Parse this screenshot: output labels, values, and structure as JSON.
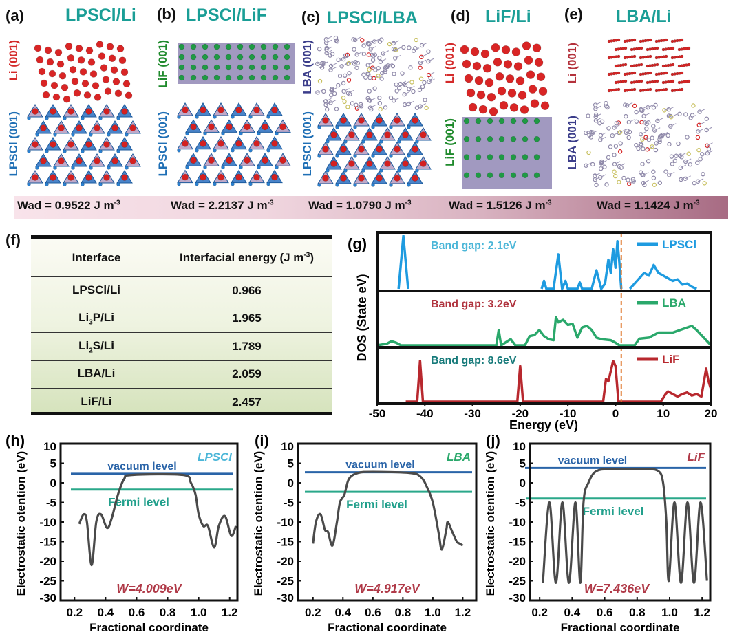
{
  "structures": {
    "panels": [
      {
        "label": "(a)",
        "title": "LPSCl/Li",
        "top_layer": "Li (001)",
        "bottom_layer": "LPSCl (001)",
        "top_color": "#d42a2a",
        "bottom_color": "#1f6fb5"
      },
      {
        "label": "(b)",
        "title": "LPSCl/LiF",
        "top_layer": "LiF (001)",
        "bottom_layer": "LPSCl (001)",
        "top_color": "#1f8a2c",
        "bottom_color": "#1f6fb5"
      },
      {
        "label": "(c)",
        "title": "LPSCl/LBA",
        "top_layer": "LBA (001)",
        "bottom_layer": "LPSCl (001)",
        "top_color": "#3b3d8a",
        "bottom_color": "#1f6fb5"
      },
      {
        "label": "(d)",
        "title": "LiF/Li",
        "top_layer": "Li (001)",
        "bottom_layer": "LiF (001)",
        "top_color": "#d42a2a",
        "bottom_color": "#1f8a2c"
      },
      {
        "label": "(e)",
        "title": "LBA/Li",
        "top_layer": "Li (001)",
        "bottom_layer": "LBA (001)",
        "top_color": "#b4323c",
        "bottom_color": "#3b3d8a"
      }
    ],
    "wad": [
      {
        "text": "Wad = 0.9522 J m",
        "sup": "-3"
      },
      {
        "text": "Wad = 2.2137 J m",
        "sup": "-3"
      },
      {
        "text": "Wad = 1.0790 J m",
        "sup": "-3"
      },
      {
        "text": "Wad = 1.5126 J m",
        "sup": "-3"
      },
      {
        "text": "Wad = 1.1424 J m",
        "sup": "-3"
      }
    ]
  },
  "table": {
    "label": "(f)",
    "headers": {
      "interface": "Interface",
      "energy": "Interfacial energy (J m",
      "energy_sup": "-3",
      "energy_close": ")"
    },
    "rows": [
      {
        "pre": "LPSCl/Li",
        "sub": "",
        "post": "",
        "value": "0.966"
      },
      {
        "pre": "Li",
        "sub": "3",
        "post": "P/Li",
        "value": "1.965"
      },
      {
        "pre": "Li",
        "sub": "2",
        "post": "S/Li",
        "value": "1.789"
      },
      {
        "pre": "LBA/Li",
        "sub": "",
        "post": "",
        "value": "2.059"
      },
      {
        "pre": "LiF/Li",
        "sub": "",
        "post": "",
        "value": "2.457"
      }
    ]
  },
  "chart_data": [
    {
      "id": "g",
      "label": "(g)",
      "type": "line",
      "xlabel": "Energy (eV)",
      "ylabel": "DOS (State eV)",
      "xlim": [
        -50,
        20
      ],
      "xticks": [
        "-50",
        "-40",
        "-30",
        "-20",
        "-10",
        "0",
        "10",
        "20"
      ],
      "fermi_line_x": 1.2,
      "fermi_line_color": "#e07a30",
      "series": [
        {
          "name": "LPSCl",
          "color": "#1e9be0",
          "annotation": "Band gap: 2.1eV",
          "annotation_color": "#4bb6d8",
          "points": [
            [
              -45.5,
              0
            ],
            [
              -44.5,
              1
            ],
            [
              -43.5,
              0
            ],
            null,
            [
              -15.5,
              0
            ],
            [
              -15,
              0.15
            ],
            [
              -14.5,
              0
            ],
            [
              -13,
              0
            ],
            [
              -12,
              0.65
            ],
            [
              -11.2,
              0
            ],
            [
              -10.5,
              0.15
            ],
            [
              -10,
              0
            ],
            [
              -8,
              0
            ],
            [
              -7.5,
              0.12
            ],
            [
              -7,
              0
            ],
            [
              -5,
              0
            ],
            [
              -4,
              0.35
            ],
            [
              -3,
              0
            ],
            [
              -2.2,
              0.1
            ],
            [
              -1.5,
              0.55
            ],
            [
              -1,
              0.3
            ],
            [
              -0.5,
              0.75
            ],
            [
              0,
              0.4
            ],
            [
              0.4,
              0.9
            ],
            [
              0.8,
              0.5
            ],
            [
              1.2,
              0
            ],
            null,
            [
              3,
              0
            ],
            [
              4,
              0.1
            ],
            [
              5,
              0.2
            ],
            [
              6,
              0.3
            ],
            [
              7,
              0.25
            ],
            [
              8,
              0.45
            ],
            [
              9,
              0.3
            ],
            [
              10,
              0.25
            ],
            [
              11,
              0.2
            ],
            [
              12,
              0.15
            ],
            [
              13,
              0.18
            ],
            [
              14,
              0.08
            ],
            [
              15,
              0.1
            ],
            [
              16,
              0.04
            ],
            [
              17,
              0
            ]
          ]
        },
        {
          "name": "LBA",
          "color": "#2aa86b",
          "annotation": "Band gap: 3.2eV",
          "annotation_color": "#b0343f",
          "points": [
            [
              -50,
              0
            ],
            [
              -48,
              0.03
            ],
            [
              -47,
              0.08
            ],
            [
              -46,
              0.05
            ],
            [
              -45,
              0
            ],
            [
              -25,
              0
            ],
            [
              -24.5,
              0.3
            ],
            [
              -24,
              0
            ],
            [
              -22,
              0.12
            ],
            [
              -21,
              0
            ],
            [
              -19,
              0
            ],
            [
              -18,
              0.18
            ],
            [
              -17,
              0.2
            ],
            [
              -16,
              0.3
            ],
            [
              -15,
              0.18
            ],
            [
              -14,
              0.12
            ],
            [
              -13,
              0.1
            ],
            [
              -12.5,
              0.55
            ],
            [
              -12,
              0.45
            ],
            [
              -11,
              0.5
            ],
            [
              -10,
              0.4
            ],
            [
              -9,
              0.42
            ],
            [
              -8,
              0.15
            ],
            [
              -7,
              0.35
            ],
            [
              -6,
              0.38
            ],
            [
              -5,
              0.3
            ],
            [
              -4,
              0.15
            ],
            [
              -3,
              0.12
            ],
            [
              -1,
              0.1
            ],
            [
              0,
              0.05
            ],
            [
              0.8,
              0
            ],
            [
              4,
              0
            ],
            [
              5,
              0.13
            ],
            [
              7,
              0.15
            ],
            [
              9,
              0.25
            ],
            [
              12,
              0.25
            ],
            [
              16,
              0.38
            ],
            [
              17,
              0.3
            ],
            [
              19,
              0.1
            ],
            [
              20,
              0
            ]
          ]
        },
        {
          "name": "LiF",
          "color": "#b8282e",
          "annotation": "Band gap: 8.6eV",
          "annotation_color": "#167a7a",
          "points": [
            [
              -44,
              0
            ],
            [
              -41.6,
              0
            ],
            [
              -41,
              0.8
            ],
            [
              -40.4,
              0
            ],
            [
              -20.6,
              0
            ],
            [
              -20,
              0.7
            ],
            [
              -19.4,
              0
            ],
            [
              -2.6,
              0
            ],
            [
              -2,
              0.45
            ],
            [
              -1.5,
              0.4
            ],
            [
              -1,
              0.6
            ],
            [
              -0.5,
              0.8
            ],
            [
              0,
              0.7
            ],
            [
              0.6,
              0
            ],
            [
              9.5,
              0
            ],
            [
              10.5,
              0.15
            ],
            [
              11,
              0.2
            ],
            [
              12,
              0.15
            ],
            [
              13,
              0.1
            ],
            [
              14,
              0.15
            ],
            [
              15,
              0.18
            ],
            [
              16,
              0.12
            ],
            [
              17,
              0.15
            ],
            [
              18,
              0.1
            ],
            [
              19,
              0.65
            ],
            [
              19.5,
              0.4
            ],
            [
              20,
              0.25
            ]
          ]
        }
      ]
    },
    {
      "id": "h",
      "label": "(h)",
      "type": "line",
      "material": "LPSCl",
      "material_color": "#4bb6d8",
      "xlabel": "Fractional coordinate",
      "ylabel": "Electrostatic otention (eV)",
      "xlim": [
        0.11,
        1.25
      ],
      "ylim": [
        -30,
        10
      ],
      "xticks": [
        "0.2",
        "0.4",
        "0.6",
        "0.8",
        "1.0",
        "1.2"
      ],
      "yticks": [
        "10",
        "5",
        "0",
        "-5",
        "-10",
        "-15",
        "-20",
        "-25",
        "-30"
      ],
      "vacuum_label": "vacuum level",
      "vacuum_level": 2.3,
      "fermi_label": "Fermi level",
      "fermi_level": -1.7,
      "work_function": "W=4.009eV",
      "points": [
        [
          0.23,
          -10.5
        ],
        [
          0.26,
          -8
        ],
        [
          0.28,
          -10
        ],
        [
          0.31,
          -21
        ],
        [
          0.34,
          -10
        ],
        [
          0.37,
          -8
        ],
        [
          0.41,
          -11.5
        ],
        [
          0.44,
          -9
        ],
        [
          0.48,
          -3
        ],
        [
          0.52,
          1
        ],
        [
          0.57,
          2
        ],
        [
          0.9,
          2
        ],
        [
          0.95,
          0
        ],
        [
          0.98,
          -3
        ],
        [
          1.0,
          -8
        ],
        [
          1.03,
          -11
        ],
        [
          1.06,
          -11
        ],
        [
          1.1,
          -16.5
        ],
        [
          1.13,
          -11
        ],
        [
          1.17,
          -8.5
        ],
        [
          1.21,
          -13.5
        ],
        [
          1.24,
          -11
        ]
      ]
    },
    {
      "id": "i",
      "label": "(i)",
      "type": "line",
      "material": "LBA",
      "material_color": "#2aa86b",
      "xlabel": "Fractional coordinate",
      "ylabel": "Electrostatic otention (eV)",
      "xlim": [
        0.1,
        1.29
      ],
      "ylim": [
        -30,
        10
      ],
      "xticks": [
        "0.2",
        "0.4",
        "0.6",
        "0.8",
        "1.0",
        "1.2"
      ],
      "yticks": [
        "10",
        "5",
        "0",
        "-5",
        "-10",
        "-15",
        "-20",
        "-25",
        "-30"
      ],
      "vacuum_label": "vacuum level",
      "vacuum_level": 2.7,
      "fermi_label": "Fermi level",
      "fermi_level": -2.3,
      "work_function": "W=4.917eV",
      "points": [
        [
          0.2,
          -15.5
        ],
        [
          0.22,
          -10
        ],
        [
          0.25,
          -8
        ],
        [
          0.28,
          -12
        ],
        [
          0.3,
          -12.5
        ],
        [
          0.33,
          -16
        ],
        [
          0.36,
          -10
        ],
        [
          0.38,
          -5
        ],
        [
          0.41,
          -3
        ],
        [
          0.44,
          1
        ],
        [
          0.5,
          2.5
        ],
        [
          0.6,
          2.8
        ],
        [
          0.85,
          2.5
        ],
        [
          0.92,
          1.5
        ],
        [
          0.96,
          -1
        ],
        [
          1.0,
          -5
        ],
        [
          1.04,
          -13
        ],
        [
          1.06,
          -17
        ],
        [
          1.09,
          -12
        ],
        [
          1.1,
          -10
        ],
        [
          1.13,
          -12.5
        ],
        [
          1.16,
          -15
        ],
        [
          1.18,
          -15.5
        ],
        [
          1.2,
          -16
        ]
      ]
    },
    {
      "id": "j",
      "label": "(j)",
      "type": "line",
      "material": "LiF",
      "material_color": "#b03a48",
      "xlabel": "Fractional coordinate",
      "ylabel": "Electrostatic otention (eV)",
      "xlim": [
        0.14,
        1.25
      ],
      "ylim": [
        -30,
        10
      ],
      "xticks": [
        "0.2",
        "0.4",
        "0.6",
        "0.8",
        "1.0",
        "1.2"
      ],
      "yticks": [
        "10",
        "5",
        "0",
        "-5",
        "-10",
        "-15",
        "-20",
        "-25",
        "-30"
      ],
      "vacuum_label": "vacuum level",
      "vacuum_level": 3.8,
      "fermi_label": "Fermi level",
      "fermi_level": -4,
      "work_function": "W=7.436eV",
      "points": [
        [
          0.22,
          -25.5
        ],
        [
          0.26,
          -5
        ],
        [
          0.3,
          -25.5
        ],
        [
          0.34,
          -5
        ],
        [
          0.38,
          -25.5
        ],
        [
          0.42,
          -5
        ],
        [
          0.45,
          -25.5
        ],
        [
          0.47,
          -5
        ],
        [
          0.5,
          0
        ],
        [
          0.55,
          3
        ],
        [
          0.65,
          3.5
        ],
        [
          0.85,
          3.5
        ],
        [
          0.93,
          3
        ],
        [
          0.96,
          0
        ],
        [
          0.98,
          -10
        ],
        [
          0.995,
          -25
        ],
        [
          1.03,
          -5
        ],
        [
          1.07,
          -25.5
        ],
        [
          1.11,
          -5
        ],
        [
          1.15,
          -25.5
        ],
        [
          1.19,
          -5
        ],
        [
          1.23,
          -25
        ]
      ]
    }
  ]
}
